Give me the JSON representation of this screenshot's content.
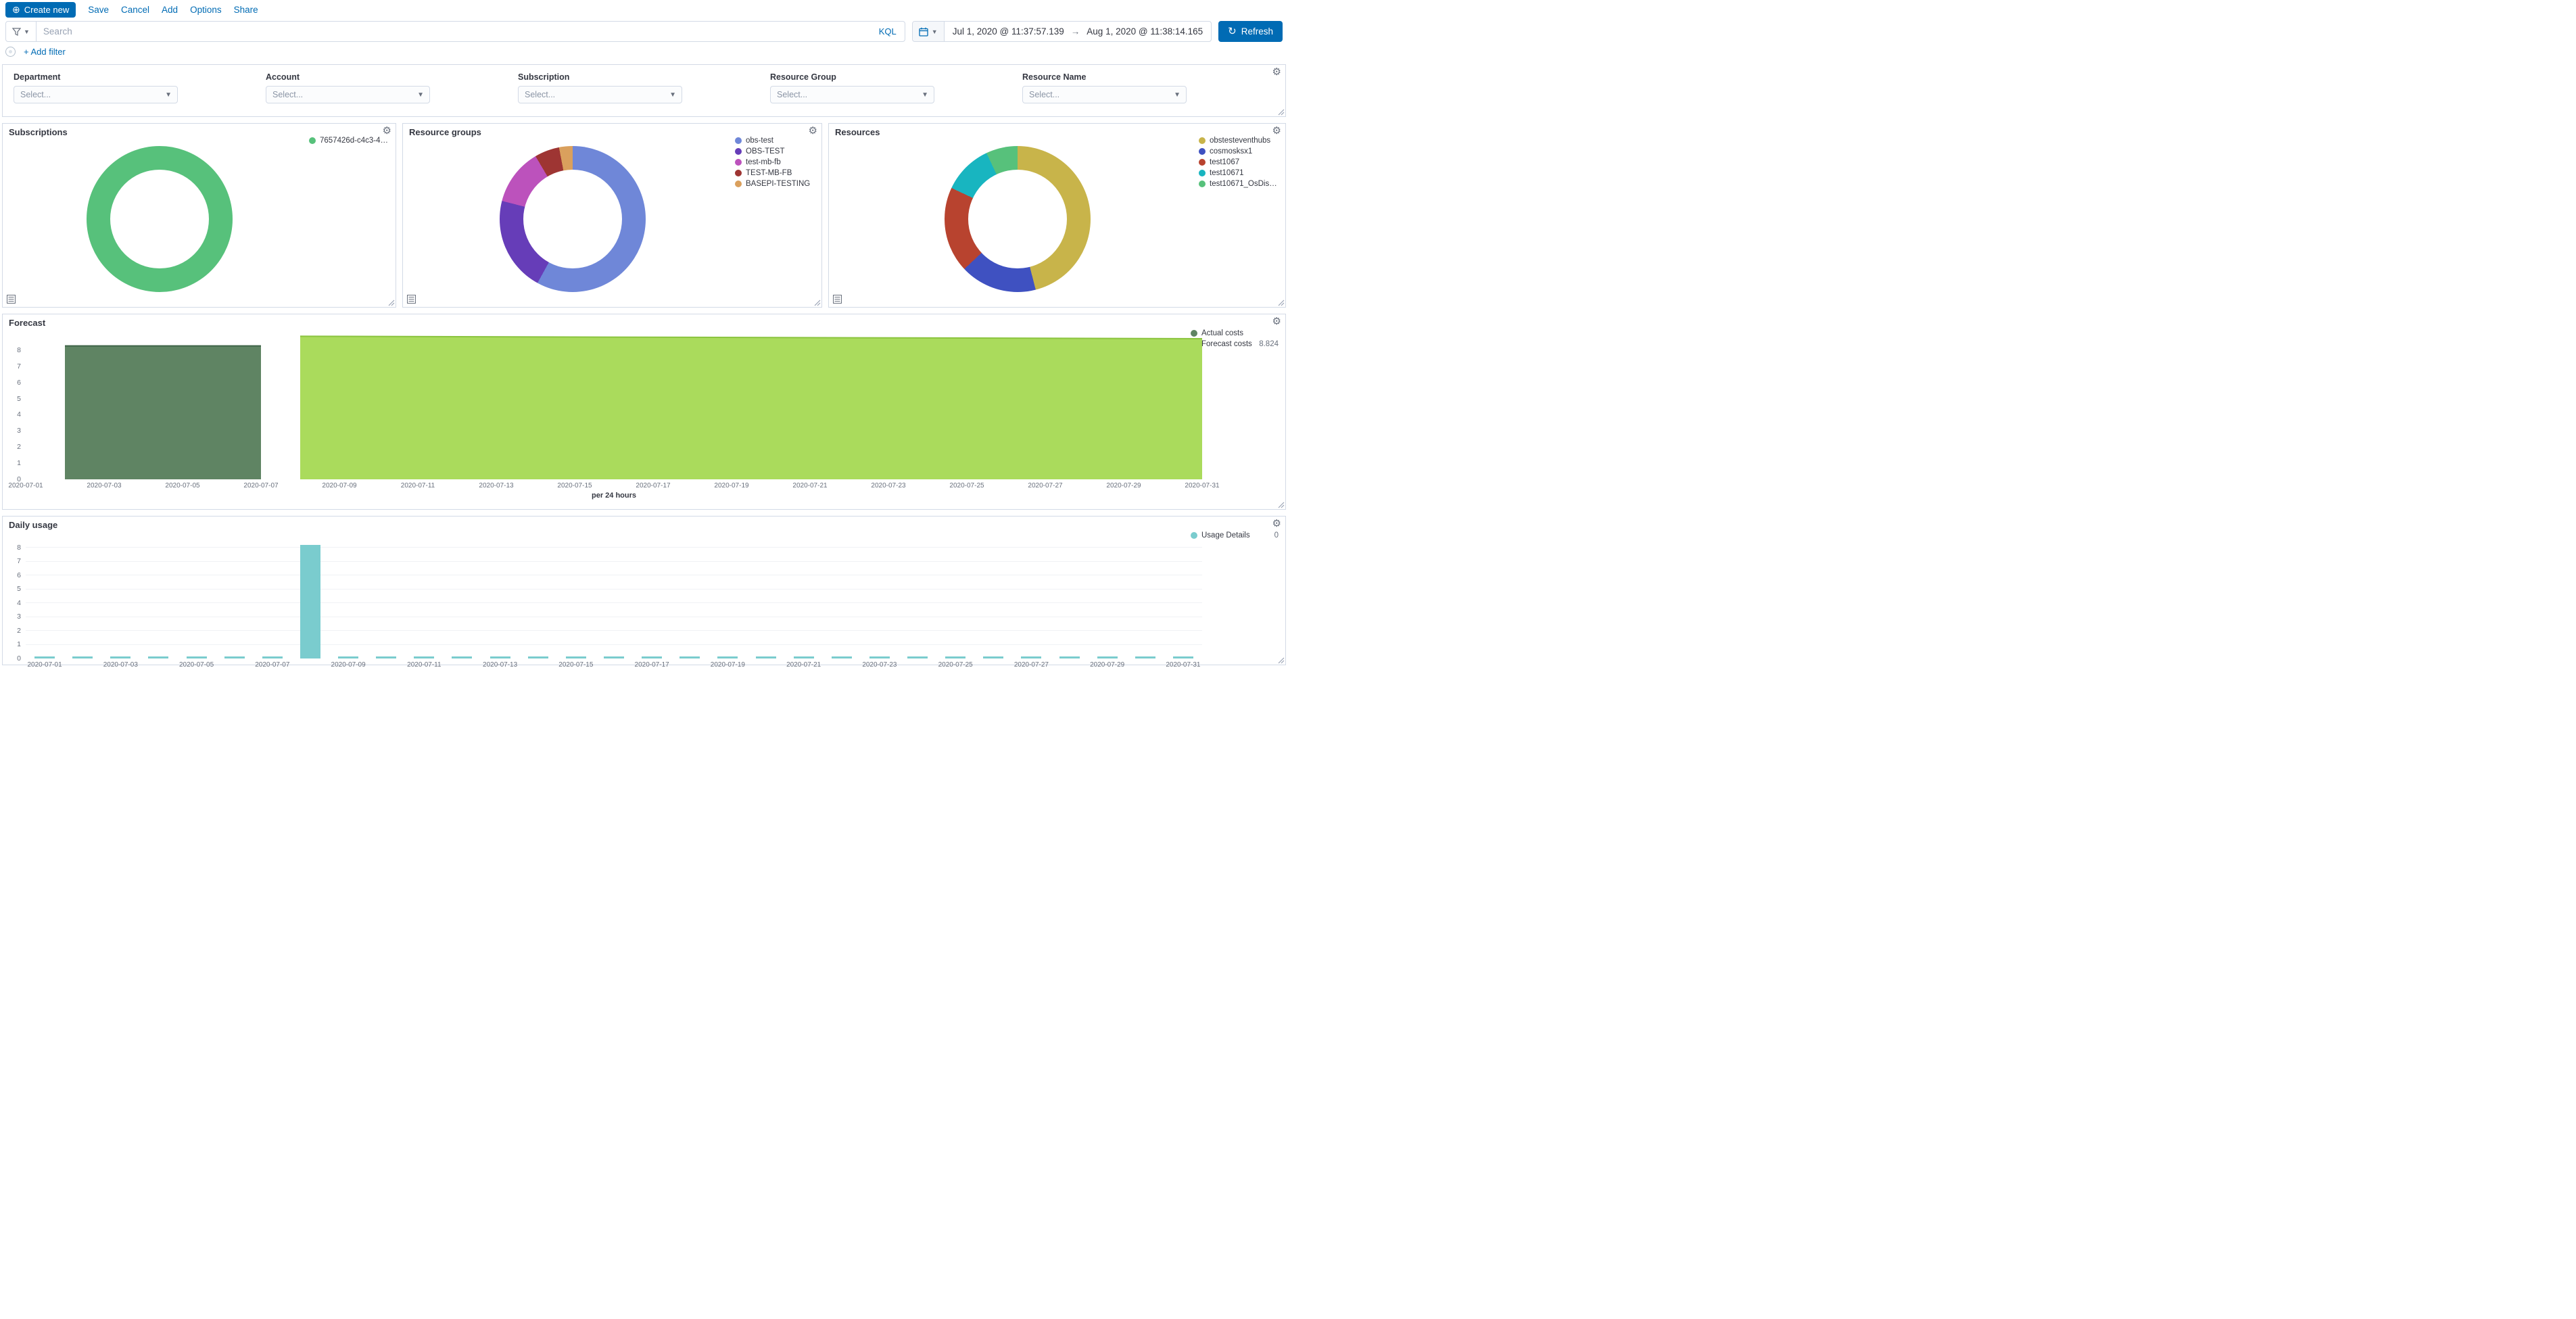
{
  "topnav": {
    "create_new_label": "Create new",
    "menu": [
      "Save",
      "Cancel",
      "Add",
      "Options",
      "Share"
    ]
  },
  "querybar": {
    "search_placeholder": "Search",
    "kql_label": "KQL",
    "date_start": "Jul 1, 2020 @ 11:37:57.139",
    "date_range_arrow": "→",
    "date_end": "Aug 1, 2020 @ 11:38:14.165",
    "refresh_label": "Refresh"
  },
  "filterbar": {
    "add_filter_label": "+ Add filter"
  },
  "controls_panel": {
    "fields": [
      {
        "label": "Department",
        "placeholder": "Select..."
      },
      {
        "label": "Account",
        "placeholder": "Select..."
      },
      {
        "label": "Subscription",
        "placeholder": "Select..."
      },
      {
        "label": "Resource Group",
        "placeholder": "Select..."
      },
      {
        "label": "Resource Name",
        "placeholder": "Select..."
      }
    ]
  },
  "chart_data": [
    {
      "id": "subscriptions",
      "type": "pie",
      "title": "Subscriptions",
      "slices": [
        {
          "label": "7657426d-c4c3-44…",
          "value": 100,
          "color": "#57c17b"
        }
      ]
    },
    {
      "id": "resource_groups",
      "type": "pie",
      "title": "Resource groups",
      "slices": [
        {
          "label": "obs-test",
          "value": 58,
          "color": "#6f87d8"
        },
        {
          "label": "OBS-TEST",
          "value": 21,
          "color": "#663db8"
        },
        {
          "label": "test-mb-fb",
          "value": 12.5,
          "color": "#bc52bc"
        },
        {
          "label": "TEST-MB-FB",
          "value": 5.5,
          "color": "#9e3533"
        },
        {
          "label": "BASEPI-TESTING",
          "value": 3,
          "color": "#daa05d"
        }
      ]
    },
    {
      "id": "resources",
      "type": "pie",
      "title": "Resources",
      "slices": [
        {
          "label": "obstesteventhubs",
          "value": 46,
          "color": "#c8b44a"
        },
        {
          "label": "cosmosksx1",
          "value": 17,
          "color": "#3f51c1"
        },
        {
          "label": "test1067",
          "value": 19,
          "color": "#b8432f"
        },
        {
          "label": "test10671",
          "value": 11,
          "color": "#18b5c0"
        },
        {
          "label": "test10671_OsDisk_1…",
          "value": 7,
          "color": "#57c17b"
        }
      ]
    },
    {
      "id": "forecast",
      "type": "area",
      "title": "Forecast",
      "xlabel": "per 24 hours",
      "ylim": [
        0,
        9
      ],
      "y_ticks": [
        0,
        1,
        2,
        3,
        4,
        5,
        6,
        7,
        8
      ],
      "x_ticks": [
        "2020-07-01",
        "2020-07-03",
        "2020-07-05",
        "2020-07-07",
        "2020-07-09",
        "2020-07-11",
        "2020-07-13",
        "2020-07-15",
        "2020-07-17",
        "2020-07-19",
        "2020-07-21",
        "2020-07-23",
        "2020-07-25",
        "2020-07-27",
        "2020-07-29",
        "2020-07-31"
      ],
      "x_domain": [
        "2020-07-01",
        "2020-07-31"
      ],
      "series": [
        {
          "name": "Actual costs",
          "color": "#5f8463",
          "line_color": "#3f6347",
          "start_day": 1,
          "end_day": 6,
          "start_value": 8.3,
          "end_value": 8.3
        },
        {
          "name": "Forecast costs",
          "color": "#aadb5c",
          "line_color": "#8bc43f",
          "start_day": 7,
          "end_day": 30,
          "start_value": 8.9,
          "end_value": 8.75
        }
      ],
      "legend": [
        {
          "label": "Actual costs",
          "color": "#5f8463",
          "value": ""
        },
        {
          "label": "Forecast costs",
          "color": "#aadb5c",
          "value": "8.824"
        }
      ],
      "legend_position": "right"
    },
    {
      "id": "daily_usage",
      "type": "bar",
      "title": "Daily usage",
      "ylim": [
        0,
        9
      ],
      "y_ticks": [
        0,
        1,
        2,
        3,
        4,
        5,
        6,
        7,
        8
      ],
      "x_ticks": [
        "2020-07-01",
        "2020-07-03",
        "2020-07-05",
        "2020-07-07",
        "2020-07-09",
        "2020-07-11",
        "2020-07-13",
        "2020-07-15",
        "2020-07-17",
        "2020-07-19",
        "2020-07-21",
        "2020-07-23",
        "2020-07-25",
        "2020-07-27",
        "2020-07-29",
        "2020-07-31"
      ],
      "bar_color": "#7accce",
      "values": [
        0.15,
        0.15,
        0.15,
        0.15,
        0.15,
        0.15,
        0.15,
        8.2,
        0.15,
        0.15,
        0.15,
        0.15,
        0.15,
        0.15,
        0.15,
        0.15,
        0.15,
        0.15,
        0.15,
        0.15,
        0.15,
        0.15,
        0.15,
        0.15,
        0.15,
        0.15,
        0.15,
        0.15,
        0.15,
        0.15,
        0.15
      ],
      "legend": [
        {
          "label": "Usage Details",
          "color": "#7accce",
          "value": "0"
        }
      ],
      "legend_position": "right"
    }
  ]
}
